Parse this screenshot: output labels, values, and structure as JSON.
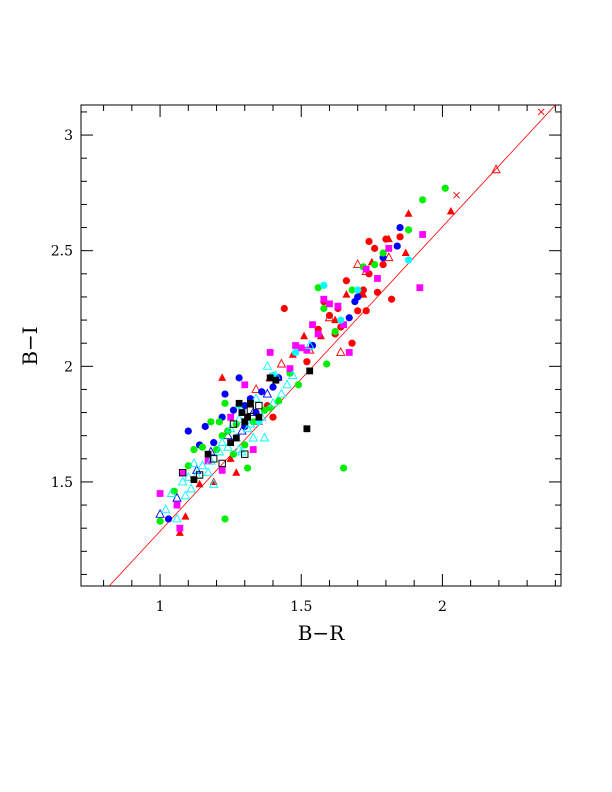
{
  "chart_data": {
    "type": "scatter",
    "title": "",
    "xlabel": "B−R",
    "ylabel": "B−I",
    "xlim": [
      0.72,
      2.42
    ],
    "ylim": [
      1.05,
      3.13
    ],
    "grid": false,
    "legend": "none",
    "x_ticks_major": [
      1,
      1.5,
      2
    ],
    "x_tick_labels": [
      "1",
      "1.5",
      "2"
    ],
    "y_ticks_major": [
      1.5,
      2,
      2.5,
      3
    ],
    "y_tick_labels": [
      "1.5",
      "2",
      "2.5",
      "3"
    ],
    "fit_line": {
      "color": "#ff0000",
      "points": [
        [
          0.82,
          1.05
        ],
        [
          2.4,
          3.13
        ]
      ]
    },
    "series": [
      {
        "marker": "filled-circle",
        "color": "#ff0000",
        "points": [
          [
            1.38,
            1.83
          ],
          [
            1.44,
            2.25
          ],
          [
            1.52,
            2.02
          ],
          [
            1.56,
            2.16
          ],
          [
            1.58,
            2.28
          ],
          [
            1.6,
            2.22
          ],
          [
            1.62,
            2.14
          ],
          [
            1.63,
            2.25
          ],
          [
            1.64,
            2.17
          ],
          [
            1.66,
            2.37
          ],
          [
            1.68,
            2.1
          ],
          [
            1.7,
            2.24
          ],
          [
            1.71,
            2.31
          ],
          [
            1.72,
            2.33
          ],
          [
            1.73,
            2.24
          ],
          [
            1.74,
            2.54
          ],
          [
            1.76,
            2.51
          ],
          [
            1.77,
            2.32
          ],
          [
            1.79,
            2.44
          ],
          [
            1.8,
            2.55
          ],
          [
            1.82,
            2.29
          ],
          [
            1.85,
            2.56
          ],
          [
            1.74,
            2.4
          ],
          [
            1.4,
            1.78
          ]
        ]
      },
      {
        "marker": "filled-triangle",
        "color": "#ff0000",
        "points": [
          [
            1.07,
            1.28
          ],
          [
            1.09,
            1.35
          ],
          [
            1.14,
            1.49
          ],
          [
            1.19,
            1.5
          ],
          [
            1.22,
            1.95
          ],
          [
            1.25,
            1.6
          ],
          [
            1.27,
            1.54
          ],
          [
            1.35,
            1.76
          ],
          [
            1.47,
            2.05
          ],
          [
            1.51,
            2.13
          ],
          [
            1.57,
            2.13
          ],
          [
            1.66,
            2.31
          ],
          [
            1.72,
            2.31
          ],
          [
            1.75,
            2.45
          ],
          [
            1.81,
            2.55
          ],
          [
            1.87,
            2.49
          ],
          [
            1.88,
            2.66
          ],
          [
            2.03,
            2.67
          ],
          [
            1.42,
            1.95
          ],
          [
            1.62,
            2.2
          ]
        ]
      },
      {
        "marker": "open-triangle",
        "color": "#ff0000",
        "points": [
          [
            1.34,
            1.9
          ],
          [
            1.43,
            2.01
          ],
          [
            1.53,
            2.07
          ],
          [
            1.6,
            2.21
          ],
          [
            1.64,
            2.06
          ],
          [
            1.7,
            2.44
          ],
          [
            1.73,
            2.41
          ],
          [
            2.19,
            2.85
          ],
          [
            1.81,
            2.47
          ],
          [
            1.39,
            1.95
          ]
        ]
      },
      {
        "marker": "cross",
        "color": "#ff0000",
        "points": [
          [
            2.05,
            2.74
          ],
          [
            2.35,
            3.1
          ]
        ]
      },
      {
        "marker": "filled-circle",
        "color": "#0000ff",
        "points": [
          [
            1.03,
            1.34
          ],
          [
            1.1,
            1.72
          ],
          [
            1.14,
            1.66
          ],
          [
            1.16,
            1.74
          ],
          [
            1.19,
            1.67
          ],
          [
            1.22,
            1.78
          ],
          [
            1.23,
            1.88
          ],
          [
            1.26,
            1.81
          ],
          [
            1.28,
            1.95
          ],
          [
            1.3,
            1.83
          ],
          [
            1.32,
            1.86
          ],
          [
            1.34,
            1.8
          ],
          [
            1.36,
            1.89
          ],
          [
            1.4,
            1.91
          ],
          [
            1.42,
            1.95
          ],
          [
            1.54,
            2.09
          ],
          [
            1.67,
            2.21
          ],
          [
            1.69,
            2.28
          ],
          [
            1.7,
            2.3
          ],
          [
            1.79,
            2.47
          ],
          [
            1.84,
            2.52
          ],
          [
            1.85,
            2.6
          ],
          [
            1.3,
            1.74
          ],
          [
            1.24,
            1.72
          ]
        ]
      },
      {
        "marker": "open-triangle",
        "color": "#0000ff",
        "points": [
          [
            1.0,
            1.36
          ],
          [
            1.06,
            1.43
          ],
          [
            1.13,
            1.55
          ],
          [
            1.18,
            1.63
          ],
          [
            1.24,
            1.7
          ],
          [
            1.29,
            1.72
          ],
          [
            1.33,
            1.8
          ],
          [
            1.38,
            1.88
          ]
        ]
      },
      {
        "marker": "filled-circle",
        "color": "#00ee00",
        "points": [
          [
            1.0,
            1.33
          ],
          [
            1.05,
            1.46
          ],
          [
            1.08,
            1.54
          ],
          [
            1.1,
            1.57
          ],
          [
            1.12,
            1.64
          ],
          [
            1.15,
            1.65
          ],
          [
            1.18,
            1.76
          ],
          [
            1.2,
            1.64
          ],
          [
            1.21,
            1.76
          ],
          [
            1.22,
            1.7
          ],
          [
            1.23,
            1.84
          ],
          [
            1.24,
            1.72
          ],
          [
            1.27,
            1.75
          ],
          [
            1.29,
            1.8
          ],
          [
            1.3,
            1.66
          ],
          [
            1.31,
            1.56
          ],
          [
            1.33,
            1.76
          ],
          [
            1.37,
            1.81
          ],
          [
            1.39,
            1.82
          ],
          [
            1.42,
            1.85
          ],
          [
            1.46,
            1.97
          ],
          [
            1.49,
            1.92
          ],
          [
            1.56,
            2.34
          ],
          [
            1.59,
            2.01
          ],
          [
            1.62,
            2.15
          ],
          [
            1.65,
            1.56
          ],
          [
            1.68,
            2.33
          ],
          [
            1.72,
            2.43
          ],
          [
            1.76,
            2.44
          ],
          [
            1.79,
            2.49
          ],
          [
            1.88,
            2.59
          ],
          [
            1.93,
            2.72
          ],
          [
            2.01,
            2.77
          ],
          [
            1.23,
            1.34
          ],
          [
            1.58,
            2.25
          ],
          [
            1.26,
            1.62
          ]
        ]
      },
      {
        "marker": "filled-square",
        "color": "#ff00ff",
        "points": [
          [
            1.0,
            1.45
          ],
          [
            1.06,
            1.4
          ],
          [
            1.07,
            1.3
          ],
          [
            1.08,
            1.54
          ],
          [
            1.17,
            1.59
          ],
          [
            1.22,
            1.55
          ],
          [
            1.25,
            1.78
          ],
          [
            1.3,
            1.92
          ],
          [
            1.33,
            1.64
          ],
          [
            1.39,
            2.06
          ],
          [
            1.46,
            1.99
          ],
          [
            1.5,
            2.08
          ],
          [
            1.52,
            2.07
          ],
          [
            1.54,
            2.18
          ],
          [
            1.56,
            2.14
          ],
          [
            1.58,
            2.29
          ],
          [
            1.6,
            2.27
          ],
          [
            1.63,
            2.26
          ],
          [
            1.65,
            2.18
          ],
          [
            1.67,
            2.06
          ],
          [
            1.73,
            2.42
          ],
          [
            1.77,
            2.38
          ],
          [
            1.81,
            2.51
          ],
          [
            1.93,
            2.57
          ],
          [
            1.92,
            2.34
          ],
          [
            1.48,
            2.09
          ]
        ]
      },
      {
        "marker": "filled-circle",
        "color": "#00ffff",
        "points": [
          [
            1.28,
            1.83
          ],
          [
            1.4,
            1.96
          ],
          [
            1.48,
            2.06
          ],
          [
            1.58,
            2.35
          ],
          [
            1.64,
            2.2
          ],
          [
            1.7,
            2.33
          ],
          [
            1.88,
            2.46
          ],
          [
            1.35,
            1.76
          ]
        ]
      },
      {
        "marker": "open-triangle",
        "color": "#00ffff",
        "points": [
          [
            1.02,
            1.38
          ],
          [
            1.04,
            1.45
          ],
          [
            1.06,
            1.34
          ],
          [
            1.08,
            1.5
          ],
          [
            1.09,
            1.44
          ],
          [
            1.11,
            1.47
          ],
          [
            1.13,
            1.53
          ],
          [
            1.15,
            1.57
          ],
          [
            1.17,
            1.54
          ],
          [
            1.18,
            1.59
          ],
          [
            1.19,
            1.49
          ],
          [
            1.21,
            1.63
          ],
          [
            1.22,
            1.67
          ],
          [
            1.24,
            1.65
          ],
          [
            1.25,
            1.73
          ],
          [
            1.27,
            1.69
          ],
          [
            1.28,
            1.77
          ],
          [
            1.29,
            1.63
          ],
          [
            1.31,
            1.73
          ],
          [
            1.32,
            1.75
          ],
          [
            1.34,
            1.86
          ],
          [
            1.36,
            1.78
          ],
          [
            1.37,
            1.69
          ],
          [
            1.38,
            2.0
          ],
          [
            1.4,
            1.84
          ],
          [
            1.41,
            1.96
          ],
          [
            1.43,
            1.88
          ],
          [
            1.45,
            1.92
          ],
          [
            1.47,
            1.96
          ],
          [
            1.53,
            2.09
          ],
          [
            1.1,
            1.52
          ],
          [
            1.12,
            1.58
          ],
          [
            1.28,
            1.64
          ],
          [
            1.33,
            1.69
          ]
        ]
      },
      {
        "marker": "filled-square",
        "color": "#000000",
        "points": [
          [
            1.12,
            1.51
          ],
          [
            1.17,
            1.62
          ],
          [
            1.25,
            1.67
          ],
          [
            1.27,
            1.69
          ],
          [
            1.29,
            1.8
          ],
          [
            1.3,
            1.76
          ],
          [
            1.31,
            1.78
          ],
          [
            1.32,
            1.84
          ],
          [
            1.35,
            1.78
          ],
          [
            1.39,
            1.95
          ],
          [
            1.41,
            1.94
          ],
          [
            1.52,
            1.73
          ],
          [
            1.53,
            1.98
          ],
          [
            1.28,
            1.84
          ]
        ]
      },
      {
        "marker": "open-square",
        "color": "#000000",
        "points": [
          [
            1.08,
            1.54
          ],
          [
            1.14,
            1.53
          ],
          [
            1.19,
            1.6
          ],
          [
            1.22,
            1.58
          ],
          [
            1.26,
            1.75
          ],
          [
            1.3,
            1.62
          ],
          [
            1.35,
            1.83
          ],
          [
            1.32,
            1.81
          ]
        ]
      }
    ]
  }
}
